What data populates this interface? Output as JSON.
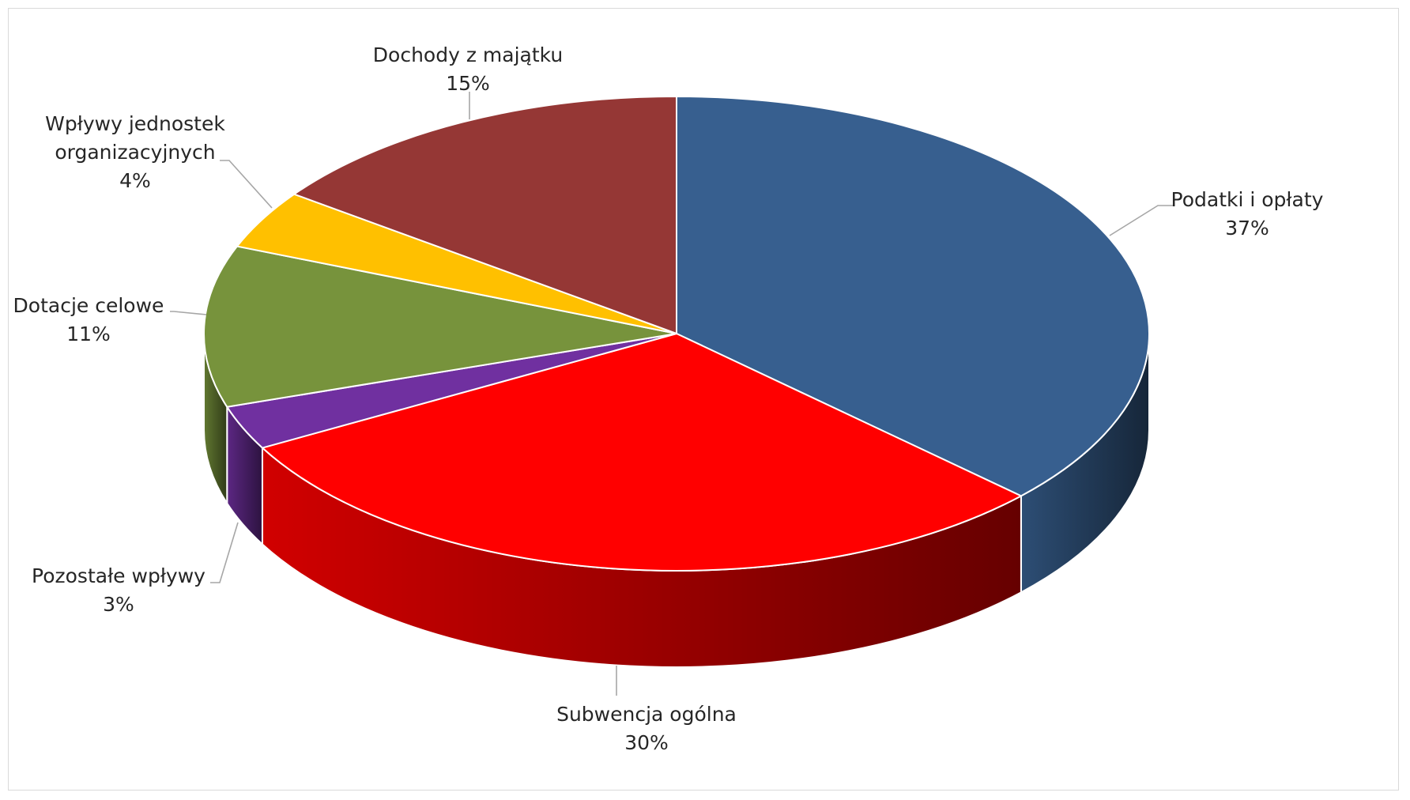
{
  "chart_data": {
    "type": "pie",
    "variant": "3d",
    "title": "",
    "slices": [
      {
        "name": "Podatki i opłaty",
        "value": 37,
        "label": "37%",
        "color": "#375F8F"
      },
      {
        "name": "Subwencja ogólna",
        "value": 30,
        "label": "30%",
        "color": "#FF0000"
      },
      {
        "name": "Pozostałe wpływy",
        "value": 3,
        "label": "3%",
        "color": "#7030A0"
      },
      {
        "name": "Dotacje celowe",
        "value": 11,
        "label": "11%",
        "color": "#77933C"
      },
      {
        "name": "Wpływy jednostek organizacyjnych",
        "value": 4,
        "label": "4%",
        "color": "#FFC000"
      },
      {
        "name": "Dochody z majątku",
        "value": 15,
        "label": "15%",
        "color": "#953735"
      }
    ],
    "label_lines": [
      [
        "Podatki i opłaty",
        "37%"
      ],
      [
        "Subwencja ogólna",
        "30%"
      ],
      [
        "Pozostałe wpływy",
        "3%"
      ],
      [
        "Dotacje celowe",
        "11%"
      ],
      [
        "Wpływy jednostek",
        "organizacyjnych",
        "4%"
      ],
      [
        "Dochody z majątku",
        "15%"
      ]
    ],
    "legend": "none",
    "labels_position": "outside-with-leader-lines"
  }
}
